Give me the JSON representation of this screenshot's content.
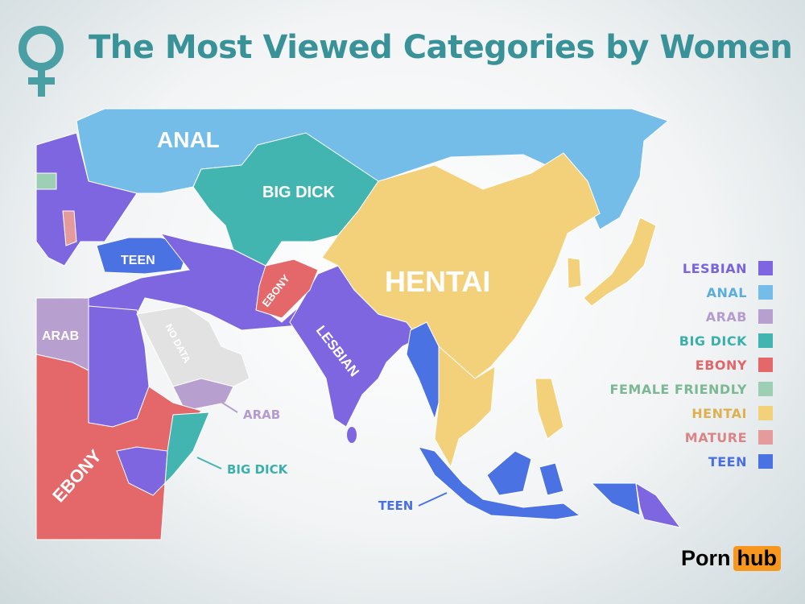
{
  "header": {
    "title": "The Most Viewed Categories by Women",
    "icon": "venus-female-symbol-icon"
  },
  "colors": {
    "lesbian": "#7e66e0",
    "anal": "#74bde8",
    "arab": "#b79fd0",
    "big_dick": "#43b5b0",
    "ebony": "#e4676a",
    "female_friendly": "#9ccfb4",
    "hentai": "#f3d07a",
    "mature": "#e59a9c",
    "teen": "#4a72e3",
    "no_data": "#e2e2e2"
  },
  "map_labels": {
    "anal": "ANAL",
    "big_dick": "BIG DICK",
    "teen_turkey": "TEEN",
    "hentai": "HENTAI",
    "ebony_afghanistan": "EBONY",
    "lesbian_india": "LESBIAN",
    "arab_libya": "ARAB",
    "no_data": "NO DATA",
    "arab_yemen": "ARAB",
    "big_dick_somalia": "BIG DICK",
    "ebony_africa": "EBONY",
    "teen_indonesia": "TEEN"
  },
  "legend": [
    {
      "label": "LESBIAN",
      "color": "#7e66e0",
      "text_color": "#7a63db"
    },
    {
      "label": "ANAL",
      "color": "#74bde8",
      "text_color": "#5aaedc"
    },
    {
      "label": "ARAB",
      "color": "#b79fd0",
      "text_color": "#b49bd0"
    },
    {
      "label": "BIG DICK",
      "color": "#43b5b0",
      "text_color": "#3aafab"
    },
    {
      "label": "EBONY",
      "color": "#e4676a",
      "text_color": "#e0666a"
    },
    {
      "label": "FEMALE FRIENDLY",
      "color": "#9ccfb4",
      "text_color": "#7db894"
    },
    {
      "label": "HENTAI",
      "color": "#f3d07a",
      "text_color": "#dcb14e"
    },
    {
      "label": "MATURE",
      "color": "#e59a9c",
      "text_color": "#d98588"
    },
    {
      "label": "TEEN",
      "color": "#4a72e3",
      "text_color": "#4a6fe0"
    }
  ],
  "logo": {
    "part1": "Porn",
    "part2": "hub"
  }
}
